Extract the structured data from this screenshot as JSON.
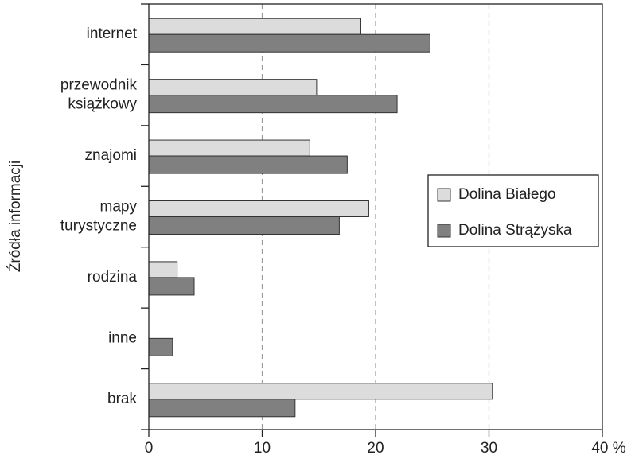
{
  "chart_data": {
    "type": "barh",
    "ylabel": "Źródła informacji",
    "categories": [
      "internet",
      "przewodnik\nksiążkowy",
      "znajomi",
      "mapy\nturystyczne",
      "rodzina",
      "inne",
      "brak"
    ],
    "series": [
      {
        "name": "Dolina Białego",
        "color": "#dcdcdc",
        "values": [
          18.7,
          14.8,
          14.2,
          19.4,
          2.5,
          0,
          30.3
        ]
      },
      {
        "name": "Dolina Strążyska",
        "color": "#808080",
        "values": [
          24.8,
          21.9,
          17.5,
          16.8,
          4.0,
          2.1,
          12.9
        ]
      }
    ],
    "xlim": [
      0,
      40
    ],
    "xticks": [
      0,
      10,
      20,
      30,
      {
        "value": 40,
        "label": "40 %"
      }
    ],
    "grid": true,
    "legend": "center right"
  }
}
